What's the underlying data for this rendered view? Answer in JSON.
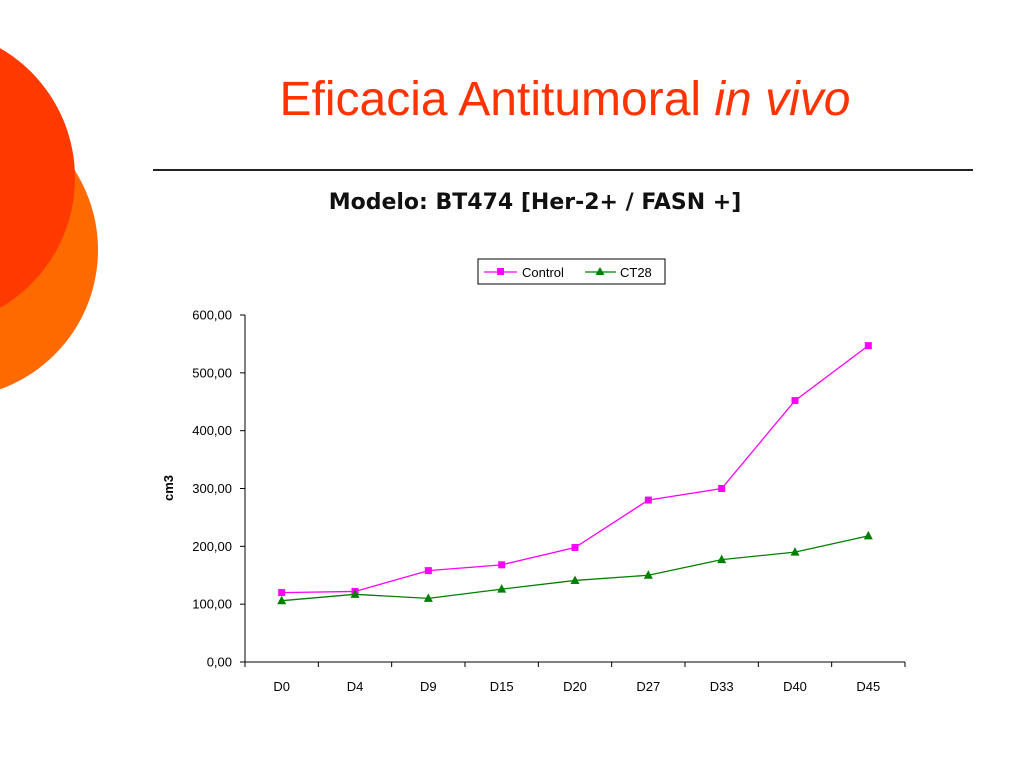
{
  "slide": {
    "title_main": "Eficacia Antitumoral ",
    "title_italic": "in vivo"
  },
  "colors": {
    "title": "#ff3300",
    "circle_red": "#ff3a00",
    "circle_orange": "#ff6a00",
    "control": "#ff00ff",
    "ct28": "#008000"
  },
  "chart_data": {
    "type": "line",
    "title": "Modelo: BT474 [Her-2+ / FASN +]",
    "xlabel": "",
    "ylabel": "cm3",
    "categories": [
      "D0",
      "D4",
      "D9",
      "D15",
      "D20",
      "D27",
      "D33",
      "D40",
      "D45"
    ],
    "ylim": [
      0,
      600
    ],
    "yticks": [
      0,
      100,
      200,
      300,
      400,
      500,
      600
    ],
    "ytick_labels": [
      "0,00",
      "100,00",
      "200,00",
      "300,00",
      "400,00",
      "500,00",
      "600,00"
    ],
    "grid": false,
    "legend_position": "top-right",
    "series": [
      {
        "name": "Control",
        "marker": "square",
        "color": "#ff00ff",
        "values": [
          120,
          122,
          158,
          168,
          198,
          280,
          300,
          452,
          547
        ]
      },
      {
        "name": "CT28",
        "marker": "triangle",
        "color": "#008000",
        "values": [
          106,
          117,
          110,
          126,
          141,
          150,
          177,
          190,
          218
        ]
      }
    ]
  }
}
